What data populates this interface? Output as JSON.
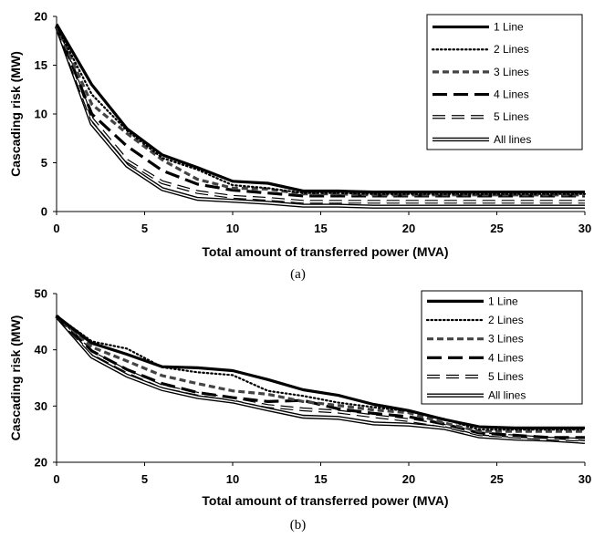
{
  "chart_data": [
    {
      "type": "line",
      "caption": "(a)",
      "xlabel": "Total amount of transferred power (MVA)",
      "ylabel": "Cascading risk (MW)",
      "xlim": [
        0,
        30
      ],
      "ylim": [
        0,
        20
      ],
      "xticks": [
        0,
        5,
        10,
        15,
        20,
        25,
        30
      ],
      "yticks": [
        0,
        5,
        10,
        15,
        20
      ],
      "grid": false,
      "legend": "top-right",
      "x": [
        0,
        2,
        4,
        6,
        8,
        10,
        12,
        14,
        16,
        18,
        20,
        22,
        24,
        26,
        28,
        30
      ],
      "series": [
        {
          "name": "1 Line",
          "style": "solid-thick",
          "values": [
            19.2,
            13.0,
            8.5,
            5.8,
            4.5,
            3.1,
            2.9,
            2.1,
            2.1,
            2.0,
            2.0,
            2.0,
            2.0,
            2.0,
            2.0,
            2.0
          ]
        },
        {
          "name": "2 Lines",
          "style": "dotted",
          "values": [
            19.0,
            12.0,
            8.3,
            5.5,
            4.3,
            2.7,
            2.4,
            1.9,
            1.9,
            1.8,
            1.8,
            1.8,
            1.8,
            1.8,
            1.8,
            1.8
          ]
        },
        {
          "name": "3 Lines",
          "style": "short-dash",
          "values": [
            19.0,
            11.0,
            8.0,
            5.3,
            3.3,
            2.4,
            2.3,
            1.8,
            1.8,
            1.7,
            1.7,
            1.7,
            1.7,
            1.7,
            1.7,
            1.7
          ]
        },
        {
          "name": "4 Lines",
          "style": "long-dash",
          "values": [
            19.0,
            10.0,
            6.7,
            4.2,
            2.8,
            2.2,
            1.9,
            1.6,
            1.6,
            1.6,
            1.6,
            1.6,
            1.6,
            1.6,
            1.6,
            1.6
          ]
        },
        {
          "name": "5 Lines",
          "style": "hollow-dash",
          "values": [
            19.0,
            9.5,
            5.2,
            3.0,
            2.0,
            1.5,
            1.3,
            1.0,
            1.0,
            1.0,
            1.0,
            1.0,
            1.0,
            1.0,
            1.0,
            1.0
          ]
        },
        {
          "name": "All lines",
          "style": "double",
          "values": [
            19.0,
            9.0,
            4.7,
            2.3,
            1.3,
            1.1,
            0.9,
            0.6,
            0.6,
            0.5,
            0.5,
            0.5,
            0.5,
            0.5,
            0.5,
            0.5
          ]
        }
      ]
    },
    {
      "type": "line",
      "caption": "(b)",
      "xlabel": "Total amount of transferred power (MVA)",
      "ylabel": "Cascading risk (MW)",
      "xlim": [
        0,
        30
      ],
      "ylim": [
        20,
        50
      ],
      "xticks": [
        0,
        5,
        10,
        15,
        20,
        25,
        30
      ],
      "yticks": [
        20,
        30,
        40,
        50
      ],
      "grid": false,
      "legend": "top-right",
      "x": [
        0,
        2,
        4,
        6,
        8,
        10,
        12,
        14,
        16,
        18,
        20,
        22,
        24,
        26,
        28,
        30
      ],
      "series": [
        {
          "name": "1 Line",
          "style": "solid-thick",
          "values": [
            46.0,
            41.2,
            39.2,
            37.0,
            36.8,
            36.3,
            34.7,
            32.9,
            31.9,
            30.3,
            29.2,
            27.6,
            26.3,
            26.1,
            26.1,
            26.1
          ]
        },
        {
          "name": "2 Lines",
          "style": "dotted",
          "values": [
            46.0,
            41.5,
            40.2,
            36.9,
            36.0,
            35.5,
            32.7,
            31.8,
            30.6,
            29.8,
            29.1,
            27.7,
            25.8,
            25.8,
            25.8,
            25.8
          ]
        },
        {
          "name": "3 Lines",
          "style": "short-dash",
          "values": [
            46.0,
            40.5,
            38.0,
            35.4,
            34.0,
            32.7,
            32.1,
            30.8,
            30.1,
            29.3,
            28.8,
            27.0,
            25.5,
            25.5,
            25.5,
            25.5
          ]
        },
        {
          "name": "4 Lines",
          "style": "long-dash",
          "values": [
            46.0,
            39.8,
            36.5,
            34.0,
            32.4,
            31.5,
            30.8,
            31.0,
            29.5,
            28.7,
            28.1,
            26.8,
            25.2,
            24.8,
            24.4,
            24.4
          ]
        },
        {
          "name": "5 Lines",
          "style": "hollow-dash",
          "values": [
            46.0,
            39.5,
            36.2,
            33.5,
            32.2,
            31.2,
            30.0,
            29.4,
            29.0,
            28.2,
            27.5,
            26.5,
            25.0,
            24.6,
            24.2,
            24.0
          ]
        },
        {
          "name": "All lines",
          "style": "double",
          "values": [
            46.0,
            38.8,
            35.4,
            33.0,
            31.6,
            30.8,
            29.4,
            28.1,
            27.9,
            26.9,
            26.7,
            26.1,
            24.6,
            24.2,
            24.0,
            23.6
          ]
        }
      ]
    }
  ]
}
